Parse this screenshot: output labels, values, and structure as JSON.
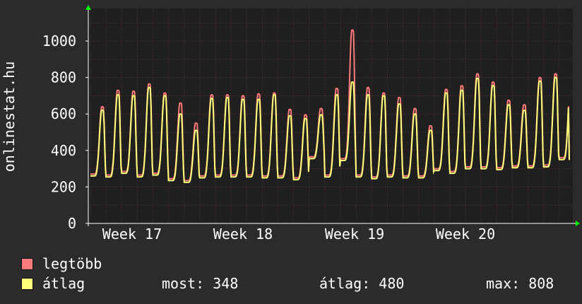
{
  "chart_data": {
    "type": "line",
    "ylabel": "onlinestat.hu",
    "ylim": [
      0,
      1000
    ],
    "yticks": [
      0,
      200,
      400,
      600,
      800,
      1000
    ],
    "xlabels": [
      "Week 17",
      "Week 18",
      "Week 19",
      "Week 20"
    ],
    "grid": true,
    "colors": {
      "background": "#2b2b2b",
      "plot_bg": "#1f1f1f",
      "grid": "#5a3030",
      "axis": "#ffffff",
      "arrow": "#00ff00"
    },
    "daily_peaks": {
      "legtobb": [
        640,
        730,
        725,
        765,
        715,
        660,
        550,
        705,
        705,
        700,
        710,
        715,
        625,
        595,
        630,
        740,
        1060,
        745,
        715,
        690,
        630,
        535,
        735,
        755,
        820,
        775,
        675,
        650,
        800,
        820,
        815
      ],
      "atlag": [
        620,
        705,
        700,
        745,
        700,
        600,
        510,
        685,
        690,
        680,
        680,
        705,
        590,
        575,
        595,
        705,
        775,
        705,
        700,
        655,
        600,
        510,
        715,
        730,
        795,
        755,
        650,
        620,
        780,
        800,
        808
      ]
    },
    "daily_troughs": [
      260,
      255,
      275,
      255,
      265,
      235,
      225,
      250,
      255,
      255,
      255,
      250,
      250,
      240,
      355,
      255,
      345,
      255,
      245,
      255,
      250,
      250,
      290,
      275,
      300,
      300,
      295,
      305,
      305,
      310,
      350
    ],
    "series": [
      {
        "name": "legtöbb",
        "color": "#ff7a7a"
      },
      {
        "name": "átlag",
        "color": "#ffff7a"
      }
    ]
  },
  "legend": {
    "max_label": "legtöbb",
    "avg_label": "átlag"
  },
  "stats": {
    "current": "most: 348",
    "average": "átlag: 480",
    "max": "max: 808"
  }
}
